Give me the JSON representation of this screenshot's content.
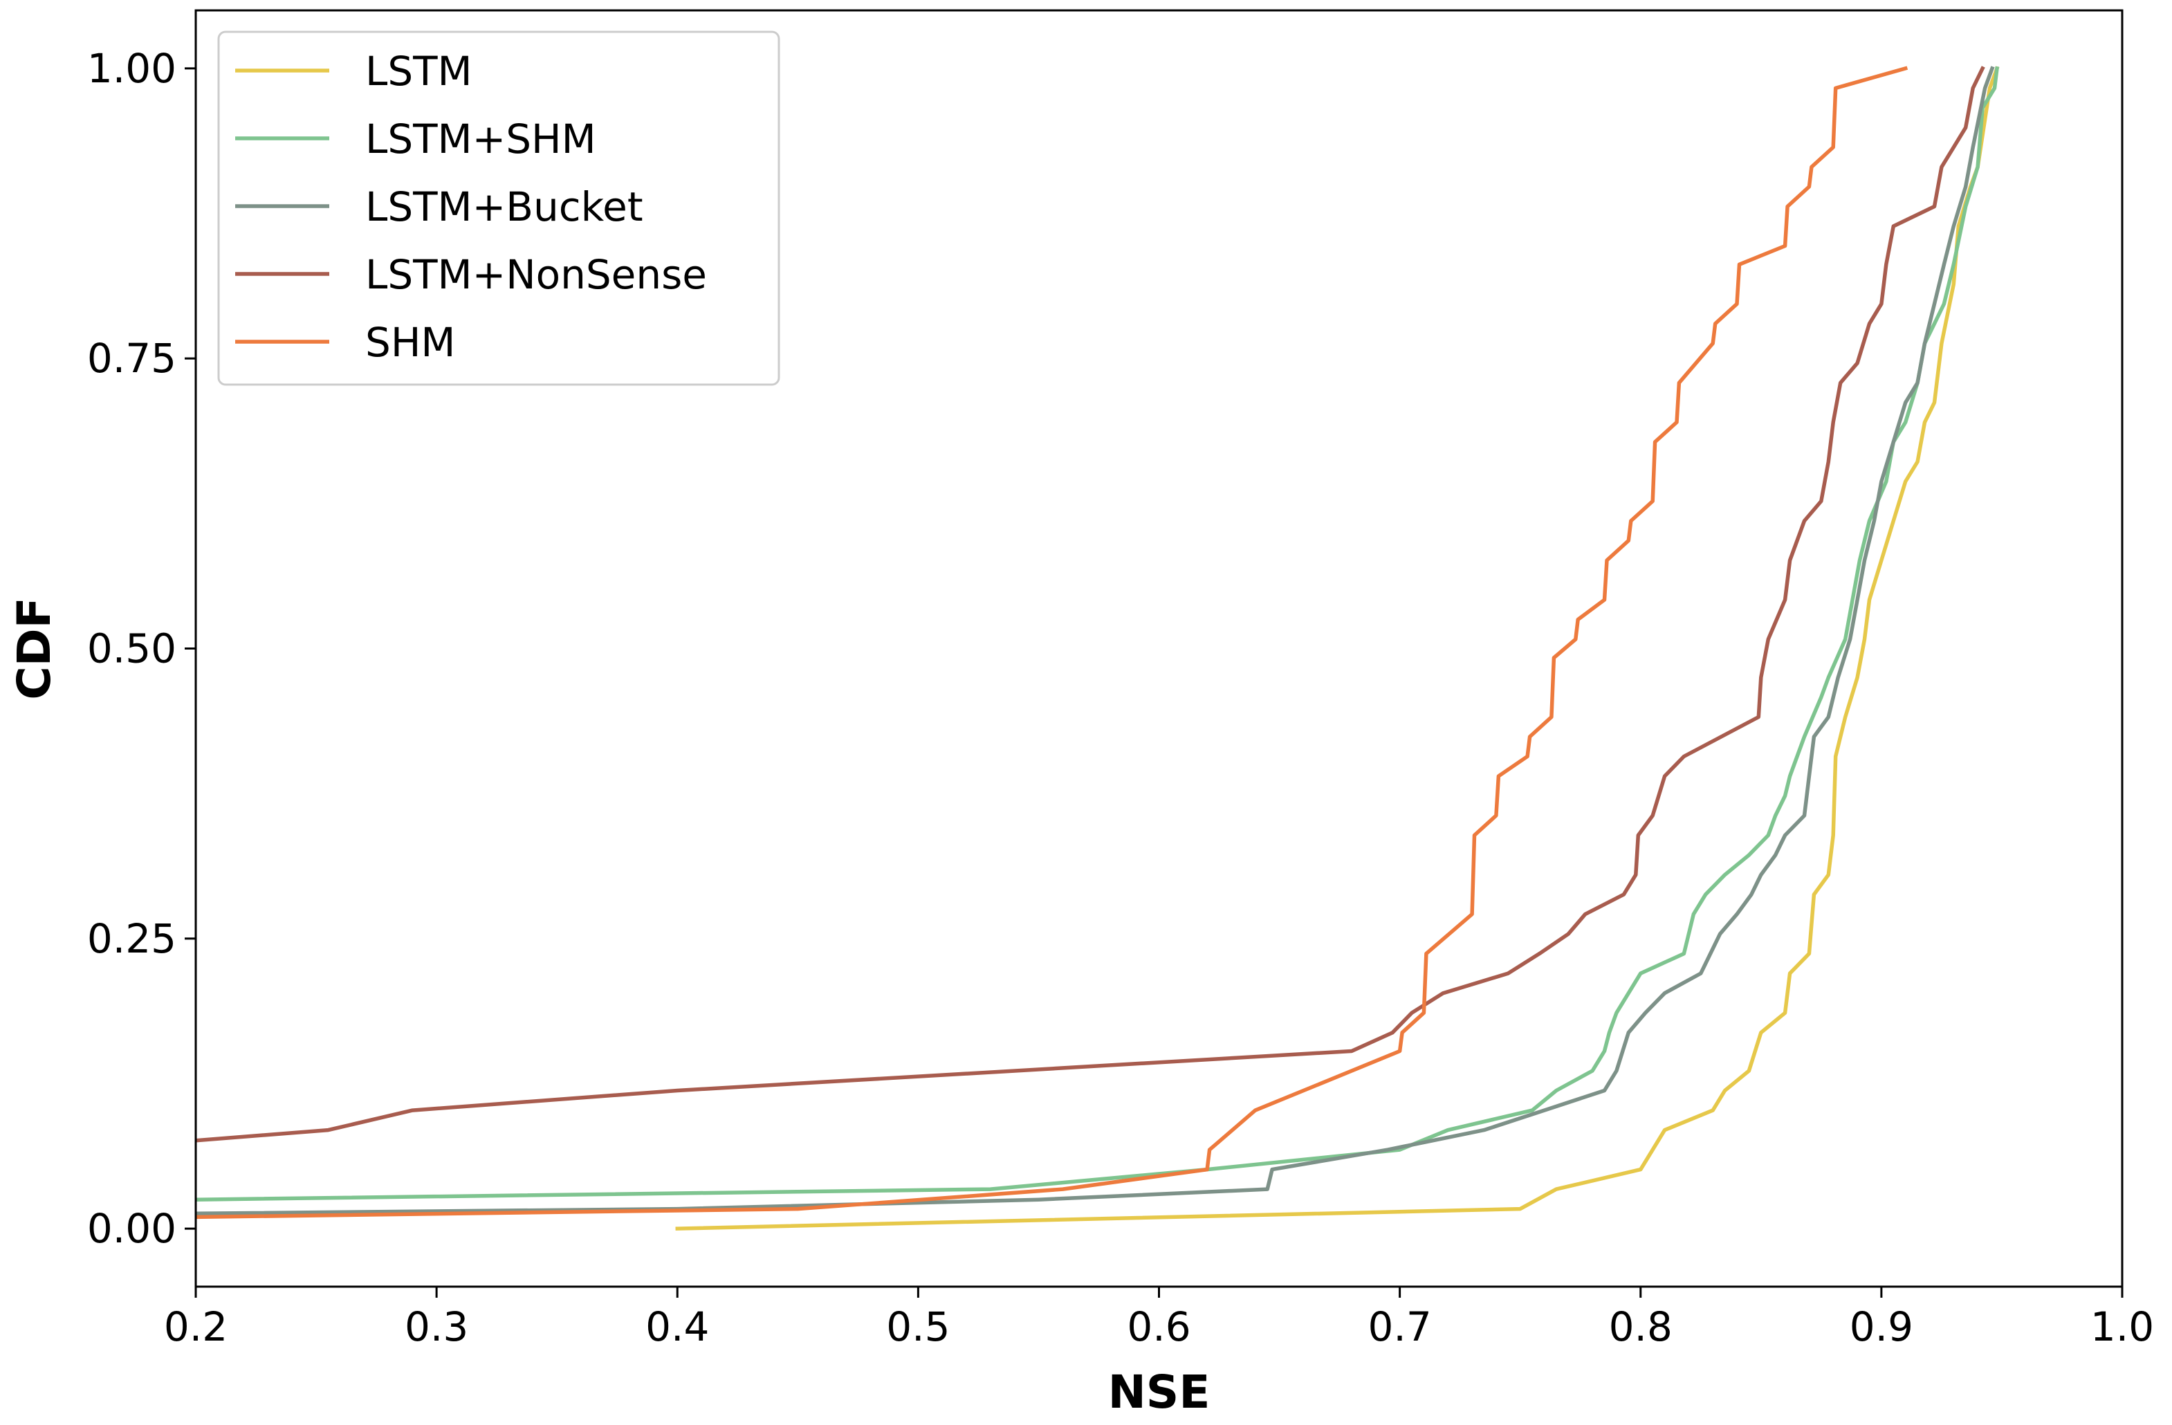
{
  "chart_data": {
    "type": "line",
    "title": "",
    "xlabel": "NSE",
    "ylabel": "CDF",
    "xlim": [
      0.2,
      1.0
    ],
    "ylim": [
      -0.05,
      1.05
    ],
    "xticks": [
      "0.2",
      "0.3",
      "0.4",
      "0.5",
      "0.6",
      "0.7",
      "0.8",
      "0.9",
      "1.0"
    ],
    "yticks": [
      "0.00",
      "0.25",
      "0.50",
      "0.75",
      "1.00"
    ],
    "grid": false,
    "legend_position": "top-left",
    "series": [
      {
        "name": "LSTM",
        "color": "#e6c84a",
        "points": [
          [
            0.4,
            0.0
          ],
          [
            0.75,
            0.017
          ],
          [
            0.765,
            0.034
          ],
          [
            0.8,
            0.051
          ],
          [
            0.81,
            0.085
          ],
          [
            0.83,
            0.102
          ],
          [
            0.835,
            0.119
          ],
          [
            0.845,
            0.136
          ],
          [
            0.85,
            0.169
          ],
          [
            0.86,
            0.186
          ],
          [
            0.862,
            0.22
          ],
          [
            0.87,
            0.237
          ],
          [
            0.872,
            0.288
          ],
          [
            0.878,
            0.305
          ],
          [
            0.88,
            0.339
          ],
          [
            0.881,
            0.407
          ],
          [
            0.885,
            0.441
          ],
          [
            0.89,
            0.475
          ],
          [
            0.893,
            0.508
          ],
          [
            0.895,
            0.542
          ],
          [
            0.9,
            0.576
          ],
          [
            0.905,
            0.61
          ],
          [
            0.91,
            0.644
          ],
          [
            0.915,
            0.661
          ],
          [
            0.918,
            0.695
          ],
          [
            0.922,
            0.712
          ],
          [
            0.925,
            0.763
          ],
          [
            0.93,
            0.814
          ],
          [
            0.932,
            0.864
          ],
          [
            0.937,
            0.898
          ],
          [
            0.94,
            0.915
          ],
          [
            0.945,
            0.983
          ],
          [
            0.948,
            1.0
          ]
        ]
      },
      {
        "name": "LSTM+SHM",
        "color": "#7ec48f",
        "points": [
          [
            0.2,
            0.025
          ],
          [
            0.53,
            0.034
          ],
          [
            0.62,
            0.051
          ],
          [
            0.7,
            0.068
          ],
          [
            0.72,
            0.085
          ],
          [
            0.755,
            0.102
          ],
          [
            0.765,
            0.119
          ],
          [
            0.78,
            0.136
          ],
          [
            0.785,
            0.153
          ],
          [
            0.787,
            0.169
          ],
          [
            0.79,
            0.186
          ],
          [
            0.8,
            0.22
          ],
          [
            0.818,
            0.237
          ],
          [
            0.822,
            0.271
          ],
          [
            0.827,
            0.288
          ],
          [
            0.835,
            0.305
          ],
          [
            0.845,
            0.322
          ],
          [
            0.853,
            0.339
          ],
          [
            0.856,
            0.356
          ],
          [
            0.86,
            0.373
          ],
          [
            0.862,
            0.39
          ],
          [
            0.868,
            0.424
          ],
          [
            0.875,
            0.458
          ],
          [
            0.878,
            0.475
          ],
          [
            0.885,
            0.508
          ],
          [
            0.888,
            0.542
          ],
          [
            0.891,
            0.576
          ],
          [
            0.895,
            0.61
          ],
          [
            0.902,
            0.644
          ],
          [
            0.905,
            0.678
          ],
          [
            0.91,
            0.695
          ],
          [
            0.915,
            0.729
          ],
          [
            0.918,
            0.763
          ],
          [
            0.922,
            0.78
          ],
          [
            0.926,
            0.797
          ],
          [
            0.93,
            0.831
          ],
          [
            0.935,
            0.881
          ],
          [
            0.94,
            0.915
          ],
          [
            0.942,
            0.966
          ],
          [
            0.947,
            0.983
          ],
          [
            0.948,
            1.0
          ]
        ]
      },
      {
        "name": "LSTM+Bucket",
        "color": "#7d9188",
        "points": [
          [
            0.2,
            0.013
          ],
          [
            0.4,
            0.017
          ],
          [
            0.55,
            0.025
          ],
          [
            0.645,
            0.034
          ],
          [
            0.647,
            0.051
          ],
          [
            0.695,
            0.068
          ],
          [
            0.735,
            0.085
          ],
          [
            0.76,
            0.102
          ],
          [
            0.785,
            0.119
          ],
          [
            0.79,
            0.136
          ],
          [
            0.795,
            0.169
          ],
          [
            0.802,
            0.186
          ],
          [
            0.81,
            0.203
          ],
          [
            0.825,
            0.22
          ],
          [
            0.833,
            0.254
          ],
          [
            0.84,
            0.271
          ],
          [
            0.846,
            0.288
          ],
          [
            0.85,
            0.305
          ],
          [
            0.856,
            0.322
          ],
          [
            0.86,
            0.339
          ],
          [
            0.868,
            0.356
          ],
          [
            0.87,
            0.39
          ],
          [
            0.872,
            0.424
          ],
          [
            0.878,
            0.441
          ],
          [
            0.882,
            0.475
          ],
          [
            0.887,
            0.508
          ],
          [
            0.89,
            0.542
          ],
          [
            0.893,
            0.576
          ],
          [
            0.897,
            0.61
          ],
          [
            0.9,
            0.644
          ],
          [
            0.905,
            0.678
          ],
          [
            0.91,
            0.712
          ],
          [
            0.915,
            0.729
          ],
          [
            0.918,
            0.763
          ],
          [
            0.922,
            0.797
          ],
          [
            0.926,
            0.831
          ],
          [
            0.93,
            0.864
          ],
          [
            0.935,
            0.898
          ],
          [
            0.938,
            0.932
          ],
          [
            0.943,
            0.983
          ],
          [
            0.946,
            1.0
          ]
        ]
      },
      {
        "name": "LSTM+NonSense",
        "color": "#a85c4e",
        "points": [
          [
            0.2,
            0.076
          ],
          [
            0.255,
            0.085
          ],
          [
            0.29,
            0.102
          ],
          [
            0.4,
            0.119
          ],
          [
            0.68,
            0.153
          ],
          [
            0.697,
            0.169
          ],
          [
            0.705,
            0.186
          ],
          [
            0.718,
            0.203
          ],
          [
            0.745,
            0.22
          ],
          [
            0.758,
            0.237
          ],
          [
            0.77,
            0.254
          ],
          [
            0.777,
            0.271
          ],
          [
            0.793,
            0.288
          ],
          [
            0.798,
            0.305
          ],
          [
            0.799,
            0.339
          ],
          [
            0.805,
            0.356
          ],
          [
            0.81,
            0.39
          ],
          [
            0.818,
            0.407
          ],
          [
            0.849,
            0.441
          ],
          [
            0.85,
            0.475
          ],
          [
            0.853,
            0.508
          ],
          [
            0.86,
            0.542
          ],
          [
            0.862,
            0.576
          ],
          [
            0.868,
            0.61
          ],
          [
            0.875,
            0.627
          ],
          [
            0.878,
            0.661
          ],
          [
            0.88,
            0.695
          ],
          [
            0.883,
            0.729
          ],
          [
            0.89,
            0.746
          ],
          [
            0.895,
            0.78
          ],
          [
            0.9,
            0.797
          ],
          [
            0.902,
            0.831
          ],
          [
            0.905,
            0.864
          ],
          [
            0.922,
            0.881
          ],
          [
            0.925,
            0.915
          ],
          [
            0.93,
            0.932
          ],
          [
            0.935,
            0.949
          ],
          [
            0.938,
            0.983
          ],
          [
            0.942,
            1.0
          ]
        ]
      },
      {
        "name": "SHM",
        "color": "#ed7a3d",
        "points": [
          [
            0.2,
            0.01
          ],
          [
            0.45,
            0.017
          ],
          [
            0.56,
            0.034
          ],
          [
            0.62,
            0.051
          ],
          [
            0.621,
            0.068
          ],
          [
            0.64,
            0.102
          ],
          [
            0.7,
            0.153
          ],
          [
            0.701,
            0.169
          ],
          [
            0.71,
            0.186
          ],
          [
            0.711,
            0.237
          ],
          [
            0.73,
            0.271
          ],
          [
            0.731,
            0.339
          ],
          [
            0.74,
            0.356
          ],
          [
            0.741,
            0.39
          ],
          [
            0.753,
            0.407
          ],
          [
            0.754,
            0.424
          ],
          [
            0.763,
            0.441
          ],
          [
            0.764,
            0.492
          ],
          [
            0.773,
            0.508
          ],
          [
            0.774,
            0.525
          ],
          [
            0.785,
            0.542
          ],
          [
            0.786,
            0.576
          ],
          [
            0.795,
            0.593
          ],
          [
            0.796,
            0.61
          ],
          [
            0.805,
            0.627
          ],
          [
            0.806,
            0.678
          ],
          [
            0.815,
            0.695
          ],
          [
            0.816,
            0.729
          ],
          [
            0.83,
            0.763
          ],
          [
            0.831,
            0.78
          ],
          [
            0.84,
            0.797
          ],
          [
            0.841,
            0.831
          ],
          [
            0.86,
            0.847
          ],
          [
            0.861,
            0.881
          ],
          [
            0.87,
            0.898
          ],
          [
            0.871,
            0.915
          ],
          [
            0.88,
            0.932
          ],
          [
            0.881,
            0.983
          ],
          [
            0.91,
            1.0
          ]
        ]
      }
    ]
  }
}
